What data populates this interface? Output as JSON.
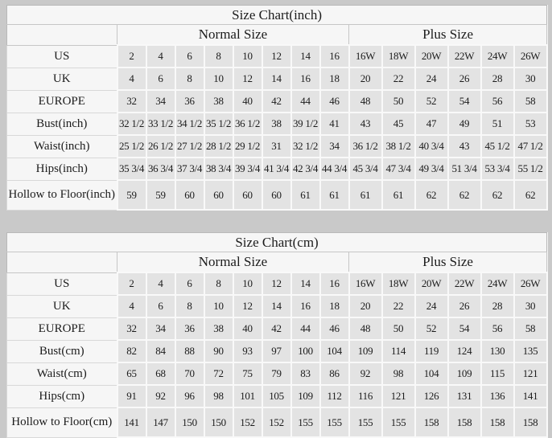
{
  "page_background": "#c9c9c9",
  "colors": {
    "table_background": "#f6f6f6",
    "data_cell_background": "#e3e3e3",
    "grid_line": "#c6c6c6",
    "text": "#1c1c1c"
  },
  "chart_data": [
    {
      "type": "table",
      "title": "Size Chart(inch)",
      "column_groups": [
        {
          "label": "",
          "span": 1
        },
        {
          "label": "Normal Size",
          "span": 8
        },
        {
          "label": "Plus Size",
          "span": 6
        }
      ],
      "rows": [
        {
          "label": "US",
          "values": [
            "2",
            "4",
            "6",
            "8",
            "10",
            "12",
            "14",
            "16",
            "16W",
            "18W",
            "20W",
            "22W",
            "24W",
            "26W"
          ]
        },
        {
          "label": "UK",
          "values": [
            "4",
            "6",
            "8",
            "10",
            "12",
            "14",
            "16",
            "18",
            "20",
            "22",
            "24",
            "26",
            "28",
            "30"
          ]
        },
        {
          "label": "EUROPE",
          "values": [
            "32",
            "34",
            "36",
            "38",
            "40",
            "42",
            "44",
            "46",
            "48",
            "50",
            "52",
            "54",
            "56",
            "58"
          ]
        },
        {
          "label": "Bust(inch)",
          "values": [
            "32 1/2",
            "33 1/2",
            "34 1/2",
            "35 1/2",
            "36 1/2",
            "38",
            "39 1/2",
            "41",
            "43",
            "45",
            "47",
            "49",
            "51",
            "53"
          ]
        },
        {
          "label": "Waist(inch)",
          "values": [
            "25 1/2",
            "26 1/2",
            "27 1/2",
            "28 1/2",
            "29 1/2",
            "31",
            "32 1/2",
            "34",
            "36 1/2",
            "38 1/2",
            "40 3/4",
            "43",
            "45 1/2",
            "47 1/2"
          ]
        },
        {
          "label": "Hips(inch)",
          "values": [
            "35 3/4",
            "36 3/4",
            "37 3/4",
            "38 3/4",
            "39 3/4",
            "41 3/4",
            "42 3/4",
            "44 3/4",
            "45 3/4",
            "47 3/4",
            "49 3/4",
            "51 3/4",
            "53 3/4",
            "55 1/2"
          ]
        },
        {
          "label": "Hollow to Floor(inch)",
          "values": [
            "59",
            "59",
            "60",
            "60",
            "60",
            "60",
            "61",
            "61",
            "61",
            "61",
            "62",
            "62",
            "62",
            "62"
          ]
        }
      ]
    },
    {
      "type": "table",
      "title": "Size Chart(cm)",
      "column_groups": [
        {
          "label": "",
          "span": 1
        },
        {
          "label": "Normal Size",
          "span": 8
        },
        {
          "label": "Plus Size",
          "span": 6
        }
      ],
      "rows": [
        {
          "label": "US",
          "values": [
            "2",
            "4",
            "6",
            "8",
            "10",
            "12",
            "14",
            "16",
            "16W",
            "18W",
            "20W",
            "22W",
            "24W",
            "26W"
          ]
        },
        {
          "label": "UK",
          "values": [
            "4",
            "6",
            "8",
            "10",
            "12",
            "14",
            "16",
            "18",
            "20",
            "22",
            "24",
            "26",
            "28",
            "30"
          ]
        },
        {
          "label": "EUROPE",
          "values": [
            "32",
            "34",
            "36",
            "38",
            "40",
            "42",
            "44",
            "46",
            "48",
            "50",
            "52",
            "54",
            "56",
            "58"
          ]
        },
        {
          "label": "Bust(cm)",
          "values": [
            "82",
            "84",
            "88",
            "90",
            "93",
            "97",
            "100",
            "104",
            "109",
            "114",
            "119",
            "124",
            "130",
            "135"
          ]
        },
        {
          "label": "Waist(cm)",
          "values": [
            "65",
            "68",
            "70",
            "72",
            "75",
            "79",
            "83",
            "86",
            "92",
            "98",
            "104",
            "109",
            "115",
            "121"
          ]
        },
        {
          "label": "Hips(cm)",
          "values": [
            "91",
            "92",
            "96",
            "98",
            "101",
            "105",
            "109",
            "112",
            "116",
            "121",
            "126",
            "131",
            "136",
            "141"
          ]
        },
        {
          "label": "Hollow to Floor(cm)",
          "values": [
            "141",
            "147",
            "150",
            "150",
            "152",
            "152",
            "155",
            "155",
            "155",
            "155",
            "158",
            "158",
            "158",
            "158"
          ]
        }
      ]
    }
  ]
}
